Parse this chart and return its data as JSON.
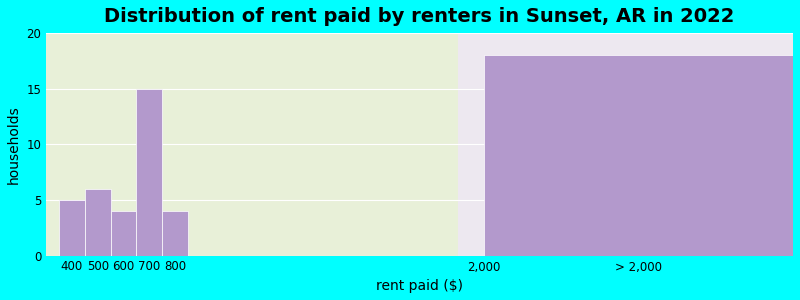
{
  "title": "Distribution of rent paid by renters in Sunset, AR in 2022",
  "xlabel": "rent paid ($)",
  "ylabel": "households",
  "bar_centers": [
    400,
    500,
    600,
    700,
    800,
    2000,
    2600
  ],
  "bar_widths": [
    100,
    100,
    100,
    100,
    100,
    100,
    1200
  ],
  "bar_values": [
    5,
    6,
    4,
    15,
    4,
    0,
    18
  ],
  "bar_labels": [
    "400",
    "500",
    "600",
    "700",
    "800",
    "2,000",
    "> 2,000"
  ],
  "bar_color": "#b399cc",
  "background_color": "#00ffff",
  "plot_bg_color_left": "#e8f0d8",
  "plot_bg_color_right": "#ede8f0",
  "xlim": [
    300,
    3200
  ],
  "ylim": [
    0,
    20
  ],
  "yticks": [
    0,
    5,
    10,
    15,
    20
  ],
  "xtick_positions": [
    400,
    500,
    600,
    700,
    800,
    2000,
    2600
  ],
  "split_x": 1900,
  "title_fontsize": 14,
  "axis_label_fontsize": 10
}
